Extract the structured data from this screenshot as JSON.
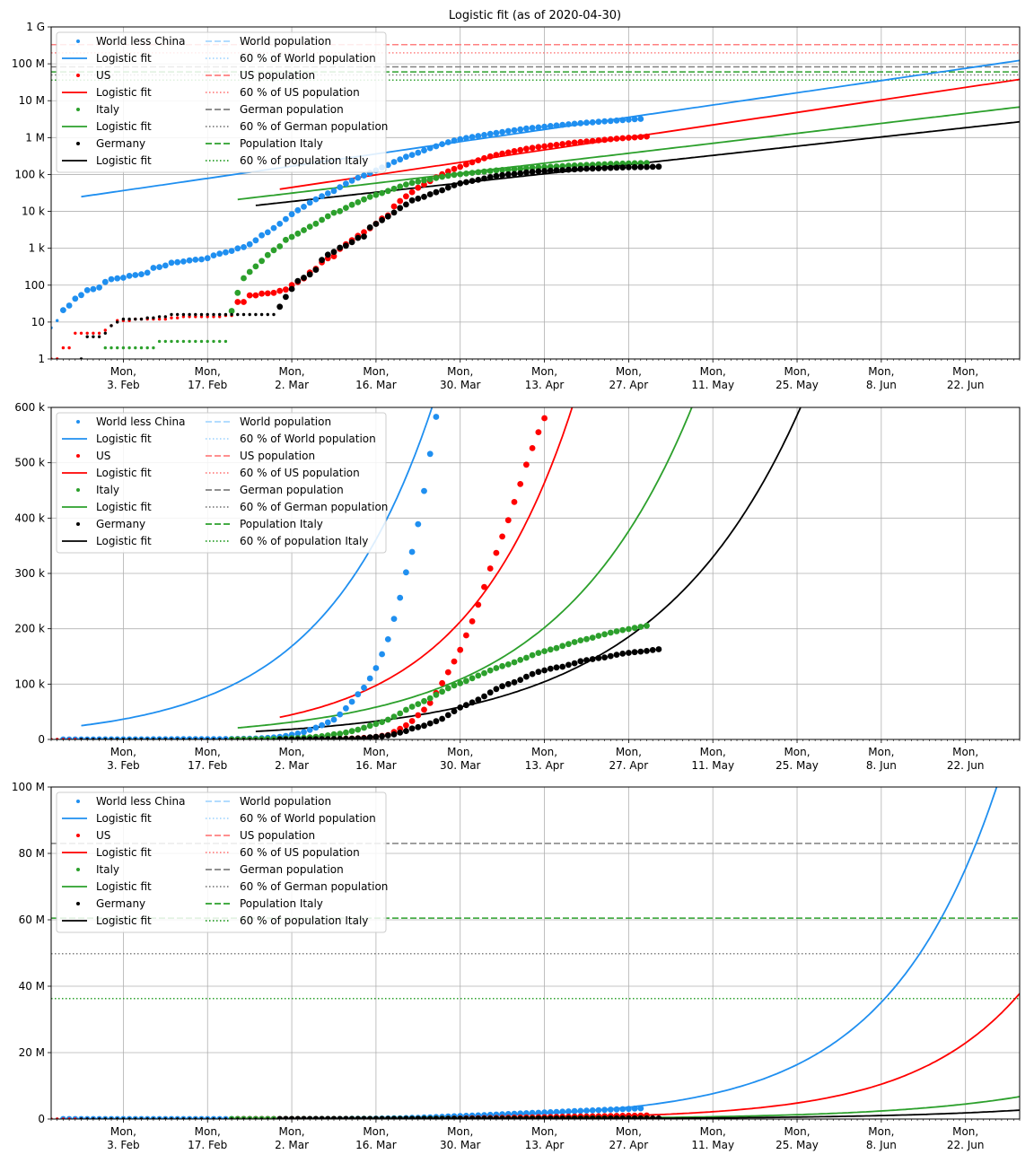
{
  "figure": {
    "title": "Logistic fit (as of 2020-04-30)"
  },
  "colors": {
    "world": "#1f8ff0",
    "us": "#ff0000",
    "italy": "#2ca02c",
    "germany": "#000000",
    "world_pop": "#a8d8ff",
    "us_pop": "#ff8080",
    "german_pop": "#808080",
    "italy_pop": "#2ca02c"
  },
  "legend_entries": [
    {
      "label": "World less China",
      "kind": "dot",
      "color": "#1f8ff0"
    },
    {
      "label": "Logistic fit",
      "kind": "line",
      "color": "#1f8ff0"
    },
    {
      "label": "US",
      "kind": "dot",
      "color": "#ff0000"
    },
    {
      "label": "Logistic fit",
      "kind": "line",
      "color": "#ff0000"
    },
    {
      "label": "Italy",
      "kind": "dot",
      "color": "#2ca02c"
    },
    {
      "label": "Logistic fit",
      "kind": "line",
      "color": "#2ca02c"
    },
    {
      "label": "Germany",
      "kind": "dot",
      "color": "#000000"
    },
    {
      "label": "Logistic fit",
      "kind": "line",
      "color": "#000000"
    },
    {
      "label": "World population",
      "kind": "dash",
      "color": "#a8d8ff"
    },
    {
      "label": "60 % of World population",
      "kind": "dot-line",
      "color": "#a8d8ff"
    },
    {
      "label": "US population",
      "kind": "dash",
      "color": "#ff8080"
    },
    {
      "label": "60 % of US population",
      "kind": "dot-line",
      "color": "#ff8080"
    },
    {
      "label": "German population",
      "kind": "dash",
      "color": "#808080"
    },
    {
      "label": "60 % of German population",
      "kind": "dot-line",
      "color": "#808080"
    },
    {
      "label": "Population Italy",
      "kind": "dash",
      "color": "#2ca02c"
    },
    {
      "label": "60 % of population Italy",
      "kind": "dot-line",
      "color": "#2ca02c"
    }
  ],
  "chart_data": [
    {
      "type": "scatter",
      "subtype": "log",
      "title": "Logistic fit (as of 2020-04-30)",
      "xlabel": "",
      "ylabel": "",
      "xlim": [
        "2020-01-22",
        "2020-07-01"
      ],
      "ylim": [
        1,
        1000000000
      ],
      "yscale": "log",
      "yticks": [
        {
          "v": 1,
          "label": "1"
        },
        {
          "v": 10,
          "label": "10"
        },
        {
          "v": 100,
          "label": "100"
        },
        {
          "v": 1000,
          "label": "1 k"
        },
        {
          "v": 10000,
          "label": "10 k"
        },
        {
          "v": 100000,
          "label": "100 k"
        },
        {
          "v": 1000000,
          "label": "1 M"
        },
        {
          "v": 10000000,
          "label": "10 M"
        },
        {
          "v": 100000000,
          "label": "100 M"
        },
        {
          "v": 1000000000,
          "label": "1 G"
        }
      ],
      "xticks": [
        {
          "date": "2020-02-03",
          "l1": "Mon,",
          "l2": "3. Feb"
        },
        {
          "date": "2020-02-17",
          "l1": "Mon,",
          "l2": "17. Feb"
        },
        {
          "date": "2020-03-02",
          "l1": "Mon,",
          "l2": "2. Mar"
        },
        {
          "date": "2020-03-16",
          "l1": "Mon,",
          "l2": "16. Mar"
        },
        {
          "date": "2020-03-30",
          "l1": "Mon,",
          "l2": "30. Mar"
        },
        {
          "date": "2020-04-13",
          "l1": "Mon,",
          "l2": "13. Apr"
        },
        {
          "date": "2020-04-27",
          "l1": "Mon,",
          "l2": "27. Apr"
        },
        {
          "date": "2020-05-11",
          "l1": "Mon,",
          "l2": "11. May"
        },
        {
          "date": "2020-05-25",
          "l1": "Mon,",
          "l2": "25. May"
        },
        {
          "date": "2020-06-08",
          "l1": "Mon,",
          "l2": "8. Jun"
        },
        {
          "date": "2020-06-22",
          "l1": "Mon,",
          "l2": "22. Jun"
        }
      ],
      "grid": true,
      "legend": "top-left",
      "population_lines": [
        {
          "name": "US population",
          "value": 330000000,
          "style": "dash",
          "color": "#ff8080"
        },
        {
          "name": "60 % of US population",
          "value": 198000000,
          "style": "dot",
          "color": "#ff8080"
        },
        {
          "name": "German population",
          "value": 83000000,
          "style": "dash",
          "color": "#808080"
        },
        {
          "name": "60 % of German population",
          "value": 49800000,
          "style": "dot",
          "color": "#808080"
        },
        {
          "name": "Population Italy",
          "value": 60500000,
          "style": "dash",
          "color": "#2ca02c"
        },
        {
          "name": "60 % of population Italy",
          "value": 36300000,
          "style": "dot",
          "color": "#2ca02c"
        }
      ]
    },
    {
      "type": "scatter",
      "subtype": "linear",
      "xlabel": "",
      "ylabel": "",
      "xlim": [
        "2020-01-22",
        "2020-07-01"
      ],
      "ylim": [
        0,
        600000
      ],
      "yscale": "linear",
      "yticks": [
        {
          "v": 0,
          "label": "0"
        },
        {
          "v": 100000,
          "label": "100 k"
        },
        {
          "v": 200000,
          "label": "200 k"
        },
        {
          "v": 300000,
          "label": "300 k"
        },
        {
          "v": 400000,
          "label": "400 k"
        },
        {
          "v": 500000,
          "label": "500 k"
        },
        {
          "v": 600000,
          "label": "600 k"
        }
      ],
      "grid": true,
      "legend": "top-left",
      "population_lines": []
    },
    {
      "type": "scatter",
      "subtype": "linear-wide",
      "xlabel": "",
      "ylabel": "",
      "xlim": [
        "2020-01-22",
        "2020-07-01"
      ],
      "ylim": [
        0,
        100000000
      ],
      "yscale": "linear",
      "yticks": [
        {
          "v": 0,
          "label": "0"
        },
        {
          "v": 20000000,
          "label": "20 M"
        },
        {
          "v": 40000000,
          "label": "40 M"
        },
        {
          "v": 60000000,
          "label": "60 M"
        },
        {
          "v": 80000000,
          "label": "80 M"
        },
        {
          "v": 100000000,
          "label": "100 M"
        }
      ],
      "grid": true,
      "legend": "top-left",
      "population_lines": [
        {
          "name": "German population",
          "value": 83000000,
          "style": "dash",
          "color": "#808080"
        },
        {
          "name": "60 % of German population",
          "value": 49800000,
          "style": "dot",
          "color": "#808080"
        },
        {
          "name": "Population Italy",
          "value": 60500000,
          "style": "dash",
          "color": "#2ca02c"
        },
        {
          "name": "60 % of population Italy",
          "value": 36300000,
          "style": "dot",
          "color": "#2ca02c"
        }
      ]
    }
  ],
  "series": {
    "world": {
      "name": "World less China",
      "color": "#1f8ff0",
      "start": "2020-01-22",
      "values": [
        7,
        11,
        21,
        28,
        43,
        54,
        73,
        78,
        87,
        122,
        145,
        153,
        159,
        179,
        188,
        198,
        217,
        295,
        309,
        341,
        405,
        419,
        439,
        469,
        490,
        501,
        539,
        641,
        715,
        777,
        847,
        990,
        1076,
        1283,
        1646,
        2253,
        2709,
        3536,
        4600,
        6203,
        8393,
        10710,
        13326,
        17201,
        21264,
        25831,
        30803,
        35700,
        45300,
        56200,
        68100,
        81600,
        93600,
        110300,
        129000,
        154000,
        181000,
        218000,
        256000,
        302000,
        339000,
        389000,
        449000,
        516000,
        583000,
        666000,
        747000,
        828000,
        904000,
        976000,
        1040000,
        1110000,
        1180000,
        1260000,
        1340000,
        1420000,
        1510000,
        1590000,
        1670000,
        1760000,
        1830000,
        1900000,
        1980000,
        2060000,
        2130000,
        2220000,
        2300000,
        2380000,
        2460000,
        2540000,
        2600000,
        2680000,
        2760000,
        2830000,
        2900000,
        2980000,
        3050000,
        3140000,
        3220000
      ]
    },
    "world_fit": {
      "start": "2020-01-27",
      "end": "2020-07-01",
      "v0": 25000,
      "k": 0.0545,
      "cap": 0
    },
    "us": {
      "name": "US",
      "color": "#ff0000",
      "start": "2020-01-22",
      "values": [
        1,
        1,
        2,
        2,
        5,
        5,
        5,
        5,
        5,
        6,
        8,
        11,
        11,
        11,
        12,
        12,
        12,
        12,
        12,
        12,
        13,
        13,
        14,
        14,
        14,
        14,
        14,
        14,
        14,
        15,
        15,
        35,
        35,
        53,
        53,
        59,
        60,
        62,
        70,
        76,
        101,
        122,
        153,
        221,
        278,
        417,
        537,
        605,
        959,
        1281,
        1663,
        2179,
        2727,
        3499,
        4632,
        6421,
        7786,
        13680,
        19101,
        25493,
        33276,
        43847,
        53740,
        65778,
        83836,
        101657,
        121478,
        140886,
        161807,
        188172,
        213372,
        243453,
        275586,
        308850,
        337072,
        366667,
        396223,
        429052,
        461437,
        496535,
        526396,
        555313,
        580619,
        607670,
        636350,
        667592,
        699706,
        732197,
        758809,
        784326,
        811865,
        840351,
        869170,
        905358,
        938154,
        965785,
        988197,
        1012583,
        1039909,
        1069424
      ]
    },
    "us_fit": {
      "start": "2020-02-29",
      "end": "2020-07-01",
      "v0": 40000,
      "k": 0.0557,
      "cap": 0
    },
    "italy": {
      "name": "Italy",
      "color": "#2ca02c",
      "start": "2020-01-31",
      "values": [
        2,
        2,
        2,
        2,
        2,
        2,
        2,
        2,
        2,
        3,
        3,
        3,
        3,
        3,
        3,
        3,
        3,
        3,
        3,
        3,
        3,
        20,
        62,
        155,
        229,
        322,
        453,
        655,
        888,
        1128,
        1694,
        2036,
        2502,
        3089,
        3858,
        4636,
        5883,
        7375,
        9172,
        10149,
        12462,
        15113,
        17660,
        21157,
        24747,
        27980,
        31506,
        35713,
        41035,
        47021,
        53578,
        59138,
        63927,
        69176,
        74386,
        80589,
        86498,
        92472,
        97689,
        101739,
        105792,
        110574,
        115242,
        119827,
        124632,
        128948,
        132547,
        135586,
        139422,
        143626,
        147577,
        152271,
        156363,
        159516,
        162488,
        165155,
        168941,
        172434,
        175925,
        178972,
        181228,
        183957,
        187327,
        189973,
        192994,
        195351,
        197675,
        199414,
        201505,
        203591,
        205463
      ]
    },
    "italy_fit": {
      "start": "2020-02-22",
      "end": "2020-07-01",
      "v0": 21000,
      "k": 0.0444,
      "cap": 0
    },
    "germany": {
      "name": "Germany",
      "color": "#000000",
      "start": "2020-01-27",
      "values": [
        1,
        4,
        4,
        4,
        5,
        8,
        10,
        12,
        12,
        12,
        12,
        13,
        13,
        14,
        14,
        16,
        16,
        16,
        16,
        16,
        16,
        16,
        16,
        16,
        16,
        16,
        16,
        16,
        16,
        16,
        16,
        16,
        16,
        26,
        48,
        79,
        130,
        159,
        196,
        262,
        482,
        670,
        799,
        1040,
        1176,
        1457,
        1908,
        2078,
        3675,
        4585,
        5795,
        7272,
        9257,
        12327,
        15320,
        19848,
        22213,
        24873,
        29056,
        32986,
        37323,
        43938,
        50871,
        57695,
        62095,
        66885,
        71808,
        77872,
        84794,
        91159,
        96092,
        100123,
        103374,
        107663,
        113296,
        118181,
        122171,
        124908,
        127854,
        130072,
        131359,
        134753,
        137698,
        141397,
        143342,
        145184,
        147065,
        148291,
        150648,
        153129,
        154999,
        156513,
        157770,
        158758,
        159912,
        161539,
        163009
      ]
    },
    "germany_fit": {
      "start": "2020-02-25",
      "end": "2020-07-01",
      "v0": 14500,
      "k": 0.0411,
      "cap": 0
    }
  }
}
